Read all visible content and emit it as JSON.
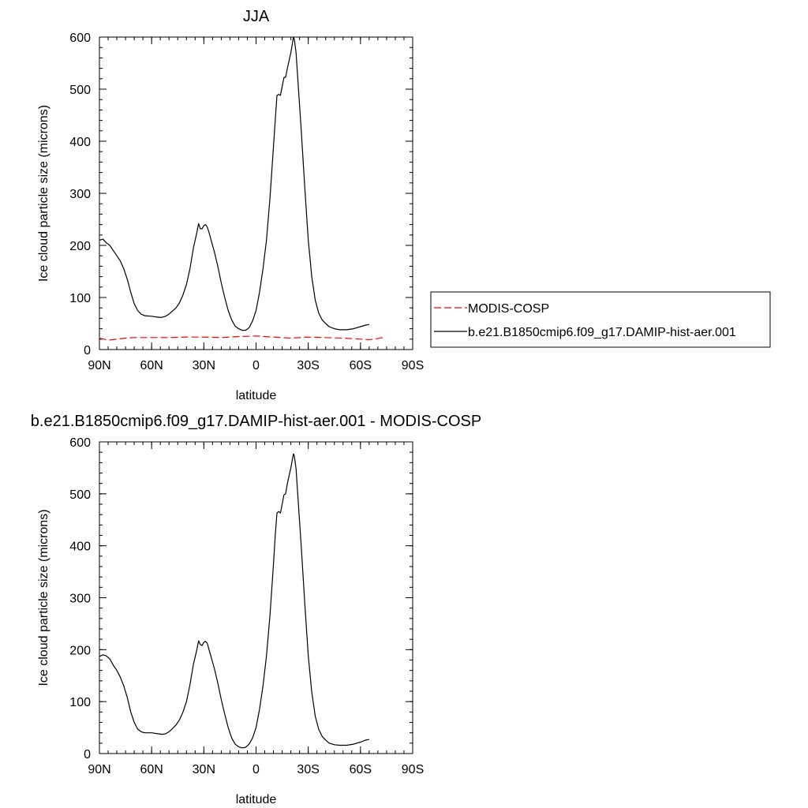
{
  "chart_data": [
    {
      "type": "line",
      "title": "JJA",
      "xlabel": "latitude",
      "ylabel": "Ice cloud particle size (microns)",
      "xlim": [
        90,
        -90
      ],
      "ylim": [
        0,
        600
      ],
      "x_ticks": [
        90,
        60,
        30,
        0,
        -30,
        -60,
        -90
      ],
      "x_tick_labels": [
        "90N",
        "60N",
        "30N",
        "0",
        "30S",
        "60S",
        "90S"
      ],
      "y_ticks": [
        0,
        100,
        200,
        300,
        400,
        500,
        600
      ],
      "y_tick_labels": [
        "0",
        "100",
        "200",
        "300",
        "400",
        "500",
        "600"
      ],
      "grid": false,
      "legend": "right",
      "series": [
        {
          "name": "MODIS-COSP",
          "color": "#ff0000",
          "dash": "dashed",
          "points": [
            [
              90,
              22
            ],
            [
              85,
              18
            ],
            [
              80,
              20
            ],
            [
              75,
              22
            ],
            [
              70,
              23
            ],
            [
              60,
              23
            ],
            [
              50,
              23
            ],
            [
              40,
              24
            ],
            [
              30,
              24
            ],
            [
              20,
              23
            ],
            [
              10,
              25
            ],
            [
              0,
              26
            ],
            [
              -5,
              25
            ],
            [
              -10,
              24
            ],
            [
              -20,
              22
            ],
            [
              -30,
              24
            ],
            [
              -40,
              23
            ],
            [
              -50,
              22
            ],
            [
              -60,
              20
            ],
            [
              -65,
              19
            ],
            [
              -70,
              21
            ],
            [
              -72,
              23
            ],
            [
              -74,
              19
            ]
          ]
        },
        {
          "name": "b.e21.B1850cmip6.f09_g17.DAMIP-hist-aer.001",
          "color": "#000000",
          "dash": "solid",
          "points": [
            [
              90,
              210
            ],
            [
              88,
              212
            ],
            [
              86,
              205
            ],
            [
              84,
              200
            ],
            [
              82,
              190
            ],
            [
              80,
              180
            ],
            [
              78,
              170
            ],
            [
              76,
              155
            ],
            [
              74,
              135
            ],
            [
              72,
              110
            ],
            [
              70,
              88
            ],
            [
              68,
              75
            ],
            [
              66,
              68
            ],
            [
              64,
              65
            ],
            [
              60,
              64
            ],
            [
              56,
              62
            ],
            [
              54,
              62
            ],
            [
              52,
              64
            ],
            [
              50,
              68
            ],
            [
              48,
              74
            ],
            [
              46,
              80
            ],
            [
              44,
              90
            ],
            [
              42,
              105
            ],
            [
              40,
              125
            ],
            [
              38,
              155
            ],
            [
              36,
              195
            ],
            [
              34,
              225
            ],
            [
              33,
              242
            ],
            [
              32,
              232
            ],
            [
              31,
              232
            ],
            [
              30,
              238
            ],
            [
              29,
              240
            ],
            [
              28,
              235
            ],
            [
              27,
              225
            ],
            [
              26,
              212
            ],
            [
              24,
              188
            ],
            [
              22,
              160
            ],
            [
              20,
              128
            ],
            [
              18,
              100
            ],
            [
              16,
              75
            ],
            [
              14,
              57
            ],
            [
              12,
              45
            ],
            [
              10,
              40
            ],
            [
              8,
              37
            ],
            [
              6,
              37
            ],
            [
              4,
              42
            ],
            [
              2,
              55
            ],
            [
              0,
              75
            ],
            [
              -2,
              110
            ],
            [
              -4,
              155
            ],
            [
              -6,
              210
            ],
            [
              -8,
              290
            ],
            [
              -10,
              390
            ],
            [
              -11,
              440
            ],
            [
              -12,
              488
            ],
            [
              -13,
              490
            ],
            [
              -14,
              488
            ],
            [
              -15,
              505
            ],
            [
              -16,
              522
            ],
            [
              -17,
              523
            ],
            [
              -18,
              540
            ],
            [
              -20,
              570
            ],
            [
              -21,
              590
            ],
            [
              -21.5,
              600
            ],
            [
              -22,
              596
            ],
            [
              -23,
              570
            ],
            [
              -24,
              520
            ],
            [
              -26,
              420
            ],
            [
              -28,
              310
            ],
            [
              -30,
              210
            ],
            [
              -32,
              140
            ],
            [
              -34,
              95
            ],
            [
              -36,
              70
            ],
            [
              -38,
              57
            ],
            [
              -40,
              50
            ],
            [
              -42,
              44
            ],
            [
              -45,
              40
            ],
            [
              -48,
              38
            ],
            [
              -52,
              38
            ],
            [
              -56,
              40
            ],
            [
              -60,
              44
            ],
            [
              -63,
              47
            ],
            [
              -65,
              48
            ]
          ]
        }
      ]
    },
    {
      "type": "line",
      "title": "b.e21.B1850cmip6.f09_g17.DAMIP-hist-aer.001 - MODIS-COSP",
      "xlabel": "latitude",
      "ylabel": "Ice cloud particle size (microns)",
      "xlim": [
        90,
        -90
      ],
      "ylim": [
        0,
        600
      ],
      "x_ticks": [
        90,
        60,
        30,
        0,
        -30,
        -60,
        -90
      ],
      "x_tick_labels": [
        "90N",
        "60N",
        "30N",
        "0",
        "30S",
        "60S",
        "90S"
      ],
      "y_ticks": [
        0,
        100,
        200,
        300,
        400,
        500,
        600
      ],
      "y_tick_labels": [
        "0",
        "100",
        "200",
        "300",
        "400",
        "500",
        "600"
      ],
      "grid": false,
      "series": [
        {
          "color": "#000000",
          "dash": "solid",
          "points": [
            [
              90,
              187
            ],
            [
              88,
              190
            ],
            [
              86,
              188
            ],
            [
              84,
              182
            ],
            [
              82,
              170
            ],
            [
              80,
              160
            ],
            [
              78,
              147
            ],
            [
              76,
              130
            ],
            [
              74,
              108
            ],
            [
              72,
              80
            ],
            [
              70,
              60
            ],
            [
              68,
              47
            ],
            [
              66,
              42
            ],
            [
              64,
              40
            ],
            [
              60,
              40
            ],
            [
              56,
              38
            ],
            [
              54,
              37
            ],
            [
              52,
              38
            ],
            [
              50,
              42
            ],
            [
              48,
              48
            ],
            [
              46,
              55
            ],
            [
              44,
              65
            ],
            [
              42,
              80
            ],
            [
              40,
              100
            ],
            [
              38,
              132
            ],
            [
              36,
              172
            ],
            [
              34,
              200
            ],
            [
              33,
              217
            ],
            [
              32,
              210
            ],
            [
              31,
              208
            ],
            [
              30,
              214
            ],
            [
              29,
              216
            ],
            [
              28,
              212
            ],
            [
              27,
              200
            ],
            [
              26,
              188
            ],
            [
              24,
              164
            ],
            [
              22,
              136
            ],
            [
              20,
              104
            ],
            [
              18,
              76
            ],
            [
              16,
              50
            ],
            [
              14,
              30
            ],
            [
              12,
              18
            ],
            [
              10,
              13
            ],
            [
              8,
              11
            ],
            [
              6,
              12
            ],
            [
              4,
              18
            ],
            [
              2,
              30
            ],
            [
              0,
              50
            ],
            [
              -2,
              85
            ],
            [
              -4,
              130
            ],
            [
              -6,
              188
            ],
            [
              -8,
              265
            ],
            [
              -10,
              365
            ],
            [
              -11,
              420
            ],
            [
              -12,
              463
            ],
            [
              -13,
              466
            ],
            [
              -14,
              463
            ],
            [
              -15,
              480
            ],
            [
              -16,
              498
            ],
            [
              -17,
              500
            ],
            [
              -18,
              520
            ],
            [
              -20,
              550
            ],
            [
              -21,
              568
            ],
            [
              -21.5,
              577
            ],
            [
              -22,
              573
            ],
            [
              -23,
              548
            ],
            [
              -24,
              498
            ],
            [
              -26,
              398
            ],
            [
              -28,
              288
            ],
            [
              -30,
              188
            ],
            [
              -32,
              118
            ],
            [
              -34,
              72
            ],
            [
              -36,
              47
            ],
            [
              -38,
              33
            ],
            [
              -40,
              26
            ],
            [
              -42,
              20
            ],
            [
              -45,
              17
            ],
            [
              -48,
              16
            ],
            [
              -52,
              16
            ],
            [
              -56,
              18
            ],
            [
              -60,
              22
            ],
            [
              -63,
              26
            ],
            [
              -65,
              27
            ]
          ]
        }
      ]
    }
  ]
}
